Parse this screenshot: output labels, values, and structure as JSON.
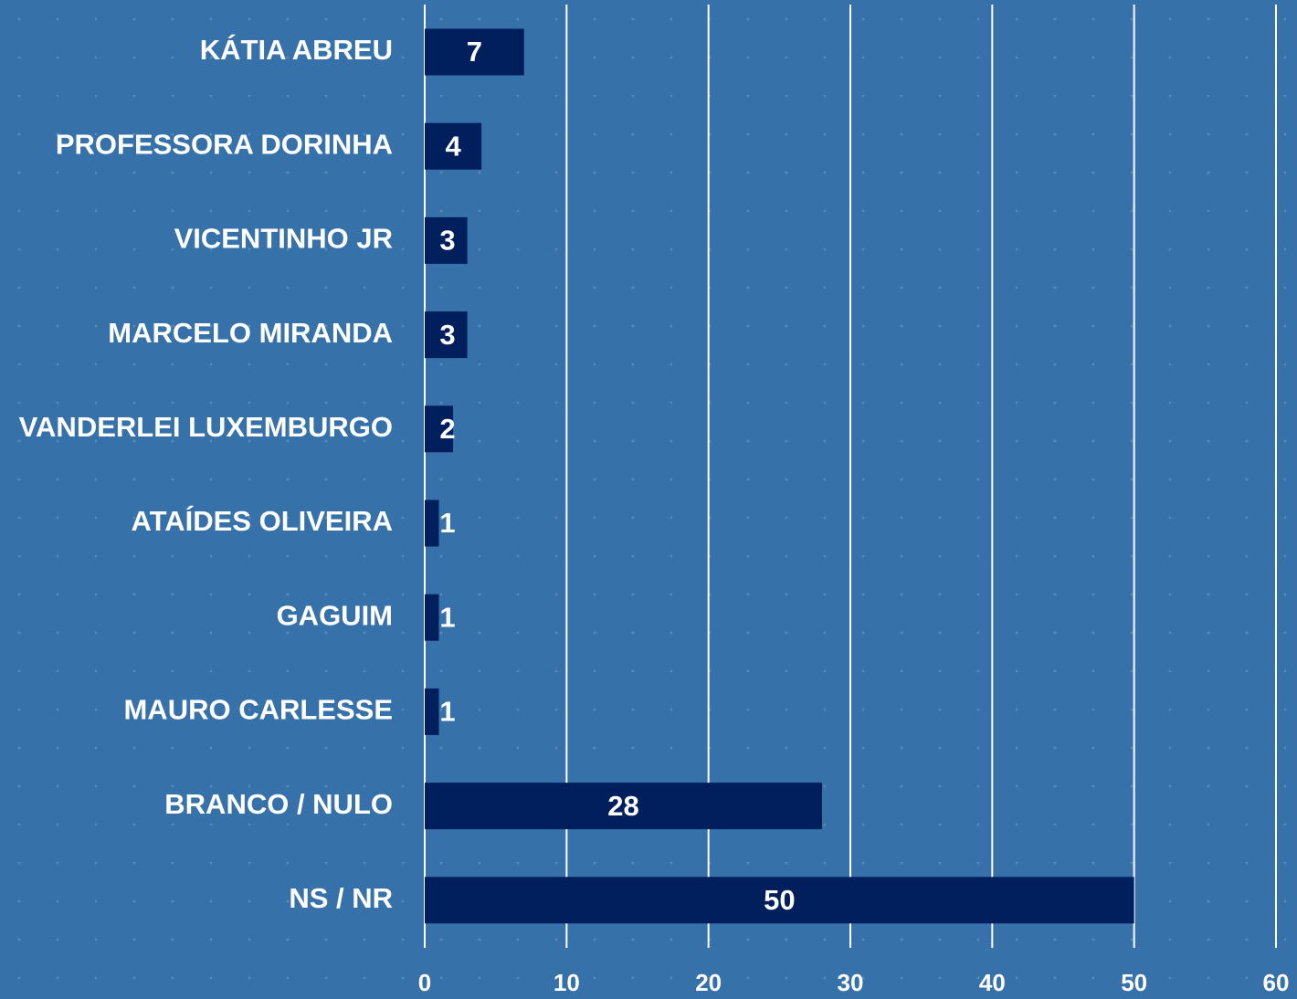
{
  "chart_data": {
    "type": "hbar",
    "categories": [
      "KÁTIA ABREU",
      "PROFESSORA DORINHA",
      "VICENTINHO JR",
      "MARCELO MIRANDA",
      "VANDERLEI LUXEMBURGO",
      "ATAÍDES OLIVEIRA",
      "GAGUIM",
      "MAURO CARLESSE",
      "BRANCO / NULO",
      "NS / NR"
    ],
    "values": [
      7,
      4,
      3,
      3,
      2,
      1,
      1,
      1,
      28,
      50
    ],
    "color": "#001f5c",
    "xlim": [
      0,
      60
    ],
    "xticks": [
      0,
      10,
      20,
      30,
      40,
      50,
      60
    ],
    "grid": true
  }
}
